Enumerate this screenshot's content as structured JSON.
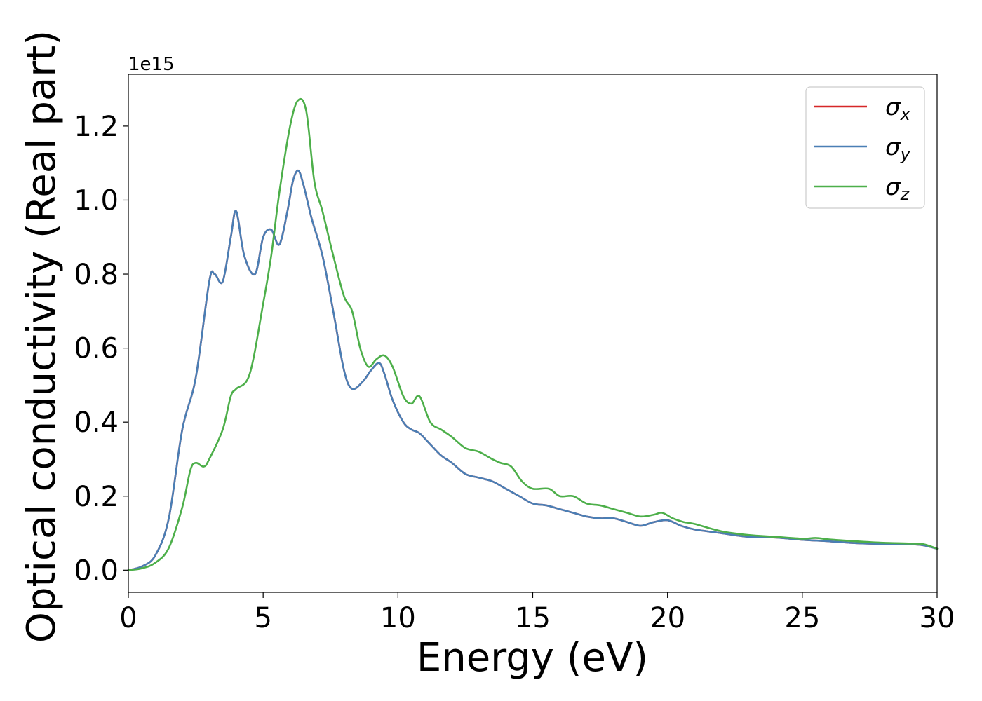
{
  "chart_data": {
    "type": "line",
    "xlabel": "Energy (eV)",
    "ylabel": "Optical conductivity (Real part)",
    "y_offset_label": "1e15",
    "xlim": [
      0,
      30
    ],
    "ylim": [
      -0.06,
      1.34
    ],
    "x_ticks": [
      0,
      5,
      10,
      15,
      20,
      25,
      30
    ],
    "x_tick_labels": [
      "0",
      "5",
      "10",
      "15",
      "20",
      "25",
      "30"
    ],
    "y_ticks": [
      0.0,
      0.2,
      0.4,
      0.6,
      0.8,
      1.0,
      1.2
    ],
    "y_tick_labels": [
      "0.0",
      "0.2",
      "0.4",
      "0.6",
      "0.8",
      "1.0",
      "1.2"
    ],
    "grid": false,
    "legend_position": "top-right",
    "series": [
      {
        "name": "σx",
        "symbol": "σ",
        "subscript": "x",
        "color": "#d62728",
        "x": [
          0,
          0.5,
          1.0,
          1.5,
          2.0,
          2.5,
          3.0,
          3.2,
          3.5,
          3.8,
          4.0,
          4.3,
          4.7,
          5.0,
          5.3,
          5.6,
          5.9,
          6.1,
          6.3,
          6.5,
          6.8,
          7.2,
          7.6,
          8.0,
          8.3,
          8.7,
          9.0,
          9.3,
          9.5,
          9.8,
          10.2,
          10.5,
          10.8,
          11.2,
          11.6,
          12.0,
          12.5,
          13.0,
          13.5,
          14.0,
          14.5,
          15.0,
          15.5,
          16.0,
          16.5,
          17.0,
          17.5,
          18.0,
          18.5,
          19.0,
          19.5,
          20.0,
          20.5,
          21.0,
          22.0,
          23.0,
          24.0,
          25.0,
          26.0,
          27.0,
          28.0,
          29.0,
          29.5,
          30.0
        ],
        "y": [
          0.0,
          0.01,
          0.04,
          0.14,
          0.38,
          0.52,
          0.78,
          0.8,
          0.78,
          0.9,
          0.97,
          0.85,
          0.8,
          0.9,
          0.92,
          0.88,
          0.97,
          1.05,
          1.08,
          1.04,
          0.95,
          0.85,
          0.7,
          0.54,
          0.49,
          0.51,
          0.54,
          0.56,
          0.53,
          0.46,
          0.4,
          0.38,
          0.37,
          0.34,
          0.31,
          0.29,
          0.26,
          0.25,
          0.24,
          0.22,
          0.2,
          0.18,
          0.175,
          0.165,
          0.155,
          0.145,
          0.14,
          0.14,
          0.13,
          0.12,
          0.13,
          0.135,
          0.12,
          0.11,
          0.1,
          0.09,
          0.088,
          0.082,
          0.078,
          0.073,
          0.071,
          0.07,
          0.067,
          0.058
        ]
      },
      {
        "name": "σy",
        "symbol": "σ",
        "subscript": "y",
        "color": "#4a7fb5",
        "x": [
          0,
          0.5,
          1.0,
          1.5,
          2.0,
          2.5,
          3.0,
          3.2,
          3.5,
          3.8,
          4.0,
          4.3,
          4.7,
          5.0,
          5.3,
          5.6,
          5.9,
          6.1,
          6.3,
          6.5,
          6.8,
          7.2,
          7.6,
          8.0,
          8.3,
          8.7,
          9.0,
          9.3,
          9.5,
          9.8,
          10.2,
          10.5,
          10.8,
          11.2,
          11.6,
          12.0,
          12.5,
          13.0,
          13.5,
          14.0,
          14.5,
          15.0,
          15.5,
          16.0,
          16.5,
          17.0,
          17.5,
          18.0,
          18.5,
          19.0,
          19.5,
          20.0,
          20.5,
          21.0,
          22.0,
          23.0,
          24.0,
          25.0,
          26.0,
          27.0,
          28.0,
          29.0,
          29.5,
          30.0
        ],
        "y": [
          0.0,
          0.01,
          0.04,
          0.14,
          0.38,
          0.52,
          0.78,
          0.8,
          0.78,
          0.9,
          0.97,
          0.85,
          0.8,
          0.9,
          0.92,
          0.88,
          0.97,
          1.05,
          1.08,
          1.04,
          0.95,
          0.85,
          0.7,
          0.54,
          0.49,
          0.51,
          0.54,
          0.56,
          0.53,
          0.46,
          0.4,
          0.38,
          0.37,
          0.34,
          0.31,
          0.29,
          0.26,
          0.25,
          0.24,
          0.22,
          0.2,
          0.18,
          0.175,
          0.165,
          0.155,
          0.145,
          0.14,
          0.14,
          0.13,
          0.12,
          0.13,
          0.135,
          0.12,
          0.11,
          0.1,
          0.09,
          0.088,
          0.082,
          0.078,
          0.073,
          0.071,
          0.07,
          0.067,
          0.058
        ]
      },
      {
        "name": "σz",
        "symbol": "σ",
        "subscript": "z",
        "color": "#4daf4a",
        "x": [
          0,
          0.5,
          1.0,
          1.5,
          2.0,
          2.3,
          2.5,
          2.8,
          3.0,
          3.5,
          3.8,
          4.0,
          4.5,
          5.0,
          5.3,
          5.6,
          6.0,
          6.3,
          6.6,
          6.9,
          7.2,
          7.6,
          8.0,
          8.3,
          8.6,
          8.9,
          9.2,
          9.5,
          9.8,
          10.2,
          10.5,
          10.8,
          11.2,
          11.6,
          12.0,
          12.5,
          13.0,
          13.5,
          13.8,
          14.2,
          14.6,
          15.0,
          15.6,
          16.0,
          16.5,
          17.0,
          17.5,
          18.0,
          18.5,
          19.0,
          19.5,
          19.8,
          20.2,
          20.6,
          21.0,
          22.0,
          23.0,
          24.0,
          25.0,
          25.5,
          26.0,
          27.0,
          28.0,
          29.0,
          29.5,
          30.0
        ],
        "y": [
          0.0,
          0.005,
          0.02,
          0.06,
          0.17,
          0.27,
          0.29,
          0.28,
          0.3,
          0.38,
          0.47,
          0.49,
          0.53,
          0.72,
          0.85,
          1.02,
          1.2,
          1.27,
          1.24,
          1.05,
          0.97,
          0.85,
          0.74,
          0.7,
          0.6,
          0.55,
          0.57,
          0.58,
          0.55,
          0.47,
          0.45,
          0.47,
          0.4,
          0.38,
          0.36,
          0.33,
          0.32,
          0.3,
          0.29,
          0.28,
          0.24,
          0.22,
          0.22,
          0.2,
          0.2,
          0.18,
          0.175,
          0.165,
          0.155,
          0.145,
          0.15,
          0.155,
          0.14,
          0.13,
          0.125,
          0.105,
          0.095,
          0.09,
          0.085,
          0.087,
          0.083,
          0.078,
          0.074,
          0.072,
          0.07,
          0.058
        ]
      }
    ]
  }
}
